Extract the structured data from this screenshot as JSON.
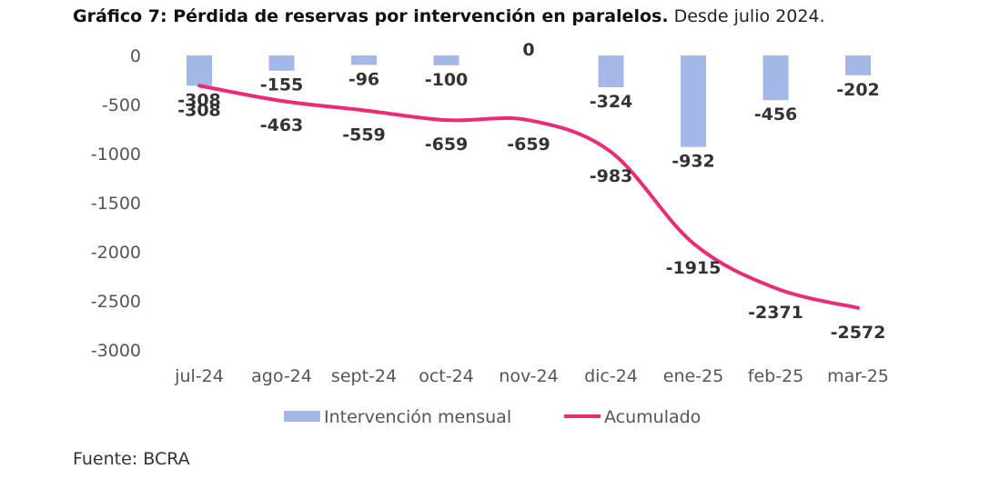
{
  "title": {
    "bold": "Gráfico 7: Pérdida de reservas por intervención en paralelos.",
    "rest": " Desde julio 2024."
  },
  "source": "Fuente: BCRA",
  "colors": {
    "bar": "#a3b8e6",
    "line": "#ee2a77"
  },
  "chart_data": {
    "type": "bar",
    "categories": [
      "jul-24",
      "ago-24",
      "sept-24",
      "oct-24",
      "nov-24",
      "dic-24",
      "ene-25",
      "feb-25",
      "mar-25"
    ],
    "series": [
      {
        "name": "Intervención mensual",
        "type": "bar",
        "values": [
          -308,
          -155,
          -96,
          -100,
          0,
          -324,
          -932,
          -456,
          -202
        ],
        "labels": [
          "-308",
          "-155",
          "-96",
          "-100",
          "0",
          "-324",
          "-932",
          "-456",
          "-202"
        ]
      },
      {
        "name": "Acumulado",
        "type": "line",
        "values": [
          -308,
          -463,
          -559,
          -659,
          -659,
          -983,
          -1915,
          -2371,
          -2572
        ],
        "labels": [
          "-308",
          "-463",
          "-559",
          "-659",
          "-659",
          "-983",
          "-1915",
          "-2371",
          "-2572"
        ]
      }
    ],
    "yticks": [
      "0",
      "-500",
      "-1000",
      "-1500",
      "-2000",
      "-2500",
      "-3000"
    ],
    "ylim": [
      -3000,
      0
    ],
    "legend": "bottom",
    "grid": false
  }
}
